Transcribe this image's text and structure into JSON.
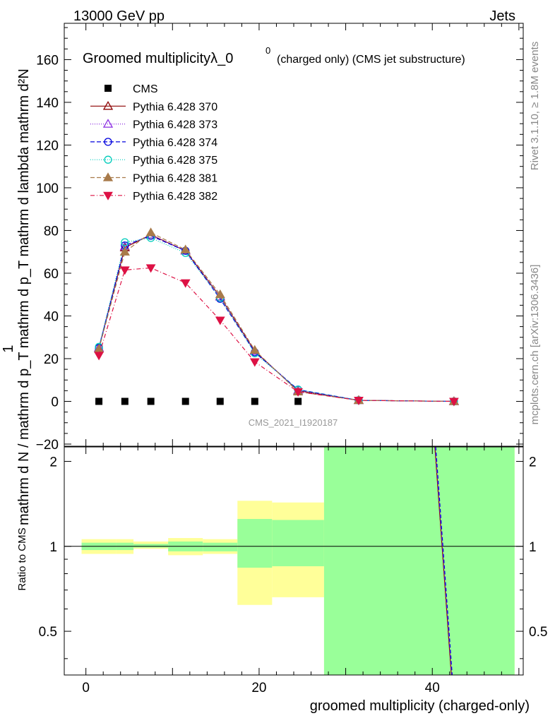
{
  "header": {
    "energy_label": "13000 GeV pp",
    "process_label": "Jets",
    "right_label_top": "Rivet 3.1.10, ≥ 1.8M events",
    "right_label_bottom": "mcplots.cern.ch [arXiv:1306.3436]",
    "analysis_id": "CMS_2021_I1920187"
  },
  "chart_data": [
    {
      "type": "line",
      "title": "Groomed multiplicityλ_0",
      "title_superscript": "0",
      "subtitle": "(charged only) (CMS jet substructure)",
      "ylabel_lines": [
        "1",
        "mathrm d N / mathrm d p_T mathrm d p_T mathrm d lambda",
        "mathrm d²N"
      ],
      "xlabel": "groomed multiplicity (charged-only)",
      "xlim": [
        -2.5,
        50.5
      ],
      "ylim": [
        -21,
        177
      ],
      "yticks": [
        -20,
        0,
        20,
        40,
        60,
        80,
        100,
        120,
        140,
        160
      ],
      "yticklabels": [
        "−20",
        "0",
        "20",
        "40",
        "60",
        "80",
        "100",
        "120",
        "140",
        "160"
      ],
      "legend_position": "top-left",
      "x": [
        1.5,
        4.5,
        7.5,
        11.5,
        15.5,
        19.5,
        24.5,
        31.5,
        42.5
      ],
      "series": [
        {
          "name": "CMS",
          "color": "#000000",
          "marker": "square",
          "dash": "none",
          "values": [
            0,
            0,
            0,
            0,
            0,
            0,
            0,
            null,
            null
          ]
        },
        {
          "name": "Pythia 6.428 370",
          "color": "#8b0000",
          "marker": "triangle-open",
          "dash": "solid",
          "values": [
            25,
            72,
            78,
            70.5,
            49,
            23.5,
            5,
            0.5,
            0
          ]
        },
        {
          "name": "Pythia 6.428 373",
          "color": "#8a2be2",
          "marker": "triangle-open",
          "dash": "1,2",
          "values": [
            25,
            72.5,
            78,
            70.5,
            49,
            23.5,
            5,
            0.5,
            0
          ]
        },
        {
          "name": "Pythia 6.428 374",
          "color": "#0000dd",
          "marker": "circle-open",
          "dash": "6,3",
          "values": [
            25,
            73,
            77.5,
            70.5,
            48,
            23,
            5.5,
            0.5,
            0
          ]
        },
        {
          "name": "Pythia 6.428 375",
          "color": "#00ccbb",
          "marker": "circle-open",
          "dash": "1,2",
          "values": [
            25.5,
            74.5,
            76.5,
            69.5,
            48.5,
            22.5,
            5.5,
            0.5,
            0
          ]
        },
        {
          "name": "Pythia 6.428 381",
          "color": "#a87a4a",
          "marker": "triangle-filled",
          "dash": "6,3",
          "values": [
            24.5,
            70,
            79,
            71,
            50,
            24,
            4.5,
            0.5,
            0
          ]
        },
        {
          "name": "Pythia 6.428 382",
          "color": "#dd1144",
          "marker": "triangle-down-filled",
          "dash": "6,3,1,3",
          "values": [
            21.5,
            61.5,
            62.5,
            55.5,
            38,
            18.5,
            4.5,
            0.5,
            0
          ]
        }
      ]
    },
    {
      "type": "area",
      "ylabel": "Ratio to CMS",
      "xlabel": "groomed multiplicity (charged-only)",
      "xlim": [
        -2.5,
        50.5
      ],
      "ylim": [
        0.35,
        2.25
      ],
      "yticks": [
        0.5,
        1,
        2
      ],
      "yticklabels": [
        "0.5",
        "1",
        "2"
      ],
      "xticks": [
        0,
        20,
        40
      ],
      "xticklabels": [
        "0",
        "20",
        "40"
      ],
      "bins": [
        {
          "lo": -0.5,
          "hi": 3.5,
          "total": [
            0.94,
            1.06
          ],
          "stat": [
            0.97,
            1.03
          ]
        },
        {
          "lo": 3.5,
          "hi": 5.5,
          "total": [
            0.94,
            1.06
          ],
          "stat": [
            0.97,
            1.03
          ]
        },
        {
          "lo": 5.5,
          "hi": 9.5,
          "total": [
            0.98,
            1.04
          ],
          "stat": [
            0.99,
            1.02
          ]
        },
        {
          "lo": 9.5,
          "hi": 13.5,
          "total": [
            0.93,
            1.07
          ],
          "stat": [
            0.96,
            1.04
          ]
        },
        {
          "lo": 13.5,
          "hi": 17.5,
          "total": [
            0.94,
            1.06
          ],
          "stat": [
            0.96,
            1.03
          ]
        },
        {
          "lo": 17.5,
          "hi": 21.5,
          "total": [
            0.62,
            1.45
          ],
          "stat": [
            0.84,
            1.25
          ]
        },
        {
          "lo": 21.5,
          "hi": 27.5,
          "total": [
            0.66,
            1.43
          ],
          "stat": [
            0.85,
            1.24
          ]
        },
        {
          "lo": 27.5,
          "hi": 49.5,
          "total": [
            0.35,
            2.25
          ],
          "stat": [
            0.35,
            2.25
          ]
        }
      ],
      "band_colors": {
        "total": "#ffff99",
        "stat": "#99ff99"
      },
      "ratio_curve": {
        "x": [
          40.3,
          42.2
        ],
        "y": [
          2.25,
          0.35
        ],
        "colors": [
          "#8b0000",
          "#8a2be2",
          "#0000dd"
        ]
      }
    }
  ]
}
